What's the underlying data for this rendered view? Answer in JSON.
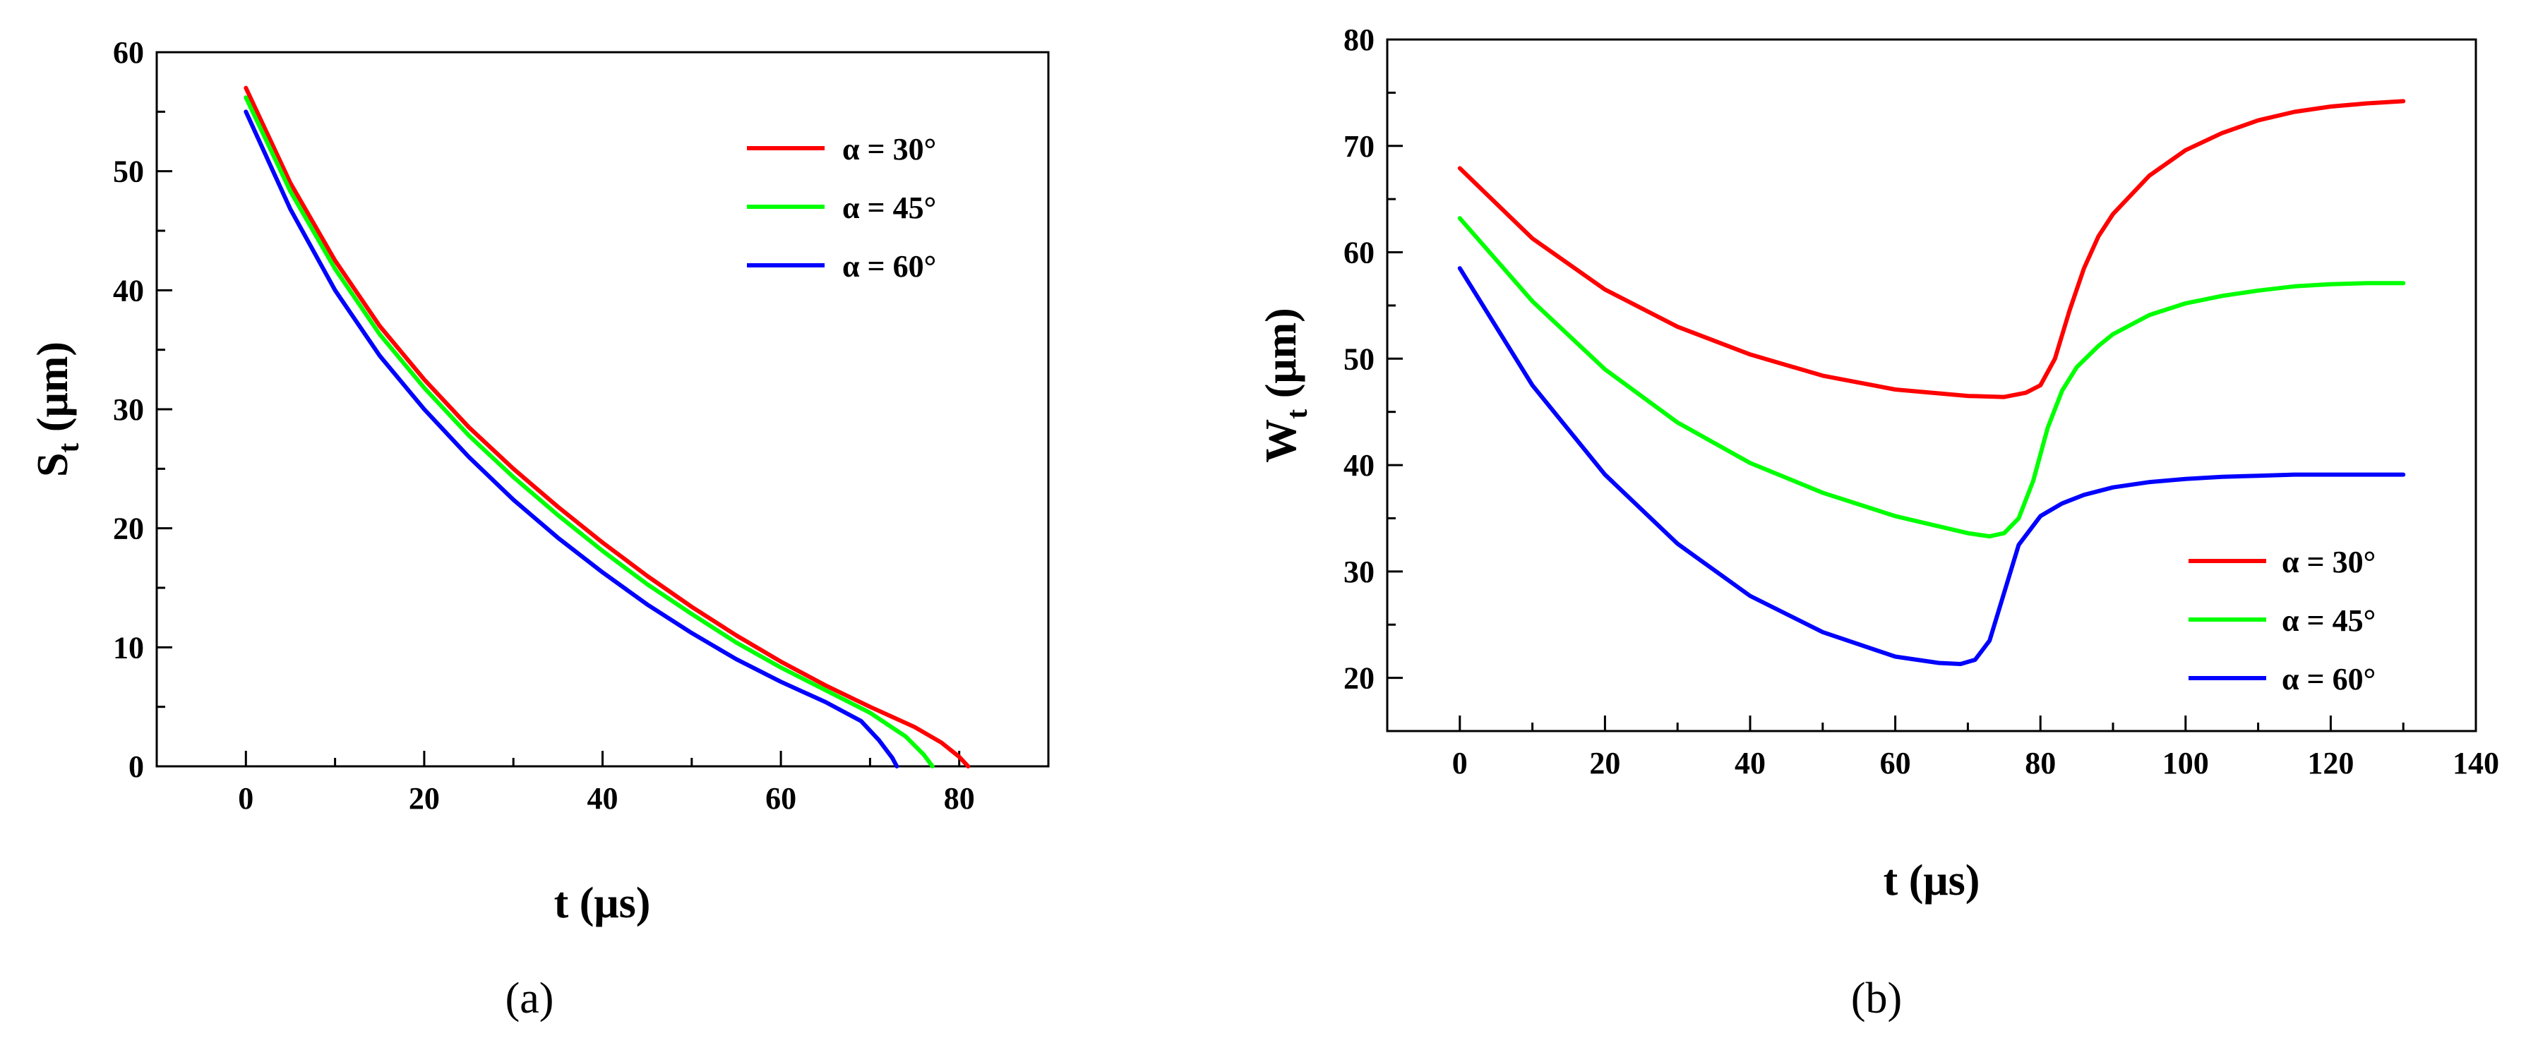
{
  "chart_data": [
    {
      "type": "line",
      "panel_label": "(a)",
      "xlabel": "t (μs)",
      "ylabel": {
        "main": "S",
        "sub": "t",
        "unit": " (μm)"
      },
      "xlim": [
        -10,
        90
      ],
      "ylim": [
        0,
        60
      ],
      "xticks": [
        0,
        20,
        40,
        60,
        80
      ],
      "yticks": [
        0,
        10,
        20,
        30,
        40,
        50,
        60
      ],
      "legend_position": "top-right",
      "series": [
        {
          "name": "α = 30°",
          "color": "#ff0000",
          "x": [
            0,
            5,
            10,
            15,
            20,
            25,
            30,
            35,
            40,
            45,
            50,
            55,
            60,
            65,
            70,
            75,
            78,
            80,
            81
          ],
          "y": [
            57,
            49,
            42.5,
            37,
            32.5,
            28.5,
            25,
            21.8,
            18.8,
            16,
            13.4,
            11,
            8.8,
            6.8,
            5,
            3.3,
            2,
            0.8,
            0
          ]
        },
        {
          "name": "α = 45°",
          "color": "#00ff00",
          "x": [
            0,
            5,
            10,
            15,
            20,
            25,
            30,
            35,
            40,
            45,
            50,
            55,
            60,
            65,
            70,
            74,
            76,
            77
          ],
          "y": [
            56.2,
            48.3,
            41.8,
            36.3,
            31.8,
            27.8,
            24.3,
            21.1,
            18.1,
            15.3,
            12.8,
            10.4,
            8.3,
            6.4,
            4.5,
            2.5,
            1,
            0
          ]
        },
        {
          "name": "α = 60°",
          "color": "#0000ff",
          "x": [
            0,
            5,
            10,
            15,
            20,
            25,
            30,
            35,
            40,
            45,
            50,
            55,
            60,
            65,
            69,
            71,
            72.5,
            73
          ],
          "y": [
            55,
            46.8,
            40,
            34.5,
            30,
            26,
            22.4,
            19.2,
            16.3,
            13.6,
            11.2,
            9,
            7.1,
            5.4,
            3.8,
            2.2,
            0.7,
            0
          ]
        }
      ]
    },
    {
      "type": "line",
      "panel_label": "(b)",
      "xlabel": "t (μs)",
      "ylabel": {
        "main": "W",
        "sub": "t",
        "unit": " (μm)"
      },
      "xlim": [
        -10,
        140
      ],
      "ylim": [
        15,
        80
      ],
      "xticks": [
        0,
        20,
        40,
        60,
        80,
        100,
        120,
        140
      ],
      "yticks": [
        20,
        30,
        40,
        50,
        60,
        70,
        80
      ],
      "legend_position": "bottom-right",
      "series": [
        {
          "name": "α = 30°",
          "color": "#ff0000",
          "x": [
            0,
            10,
            20,
            30,
            40,
            50,
            60,
            70,
            75,
            78,
            80,
            82,
            84,
            86,
            88,
            90,
            95,
            100,
            105,
            110,
            115,
            120,
            125,
            130
          ],
          "y": [
            67.9,
            61.3,
            56.5,
            53,
            50.4,
            48.4,
            47.1,
            46.5,
            46.4,
            46.8,
            47.5,
            50,
            54.5,
            58.5,
            61.5,
            63.6,
            67.2,
            69.6,
            71.2,
            72.4,
            73.2,
            73.7,
            74,
            74.2
          ]
        },
        {
          "name": "α = 45°",
          "color": "#00ff00",
          "x": [
            0,
            10,
            20,
            30,
            40,
            50,
            60,
            70,
            73,
            75,
            77,
            79,
            81,
            83,
            85,
            88,
            90,
            95,
            100,
            105,
            110,
            115,
            120,
            125,
            130
          ],
          "y": [
            63.2,
            55.4,
            49,
            44,
            40.2,
            37.4,
            35.2,
            33.6,
            33.3,
            33.6,
            35,
            38.5,
            43.5,
            47,
            49.2,
            51.2,
            52.3,
            54.1,
            55.2,
            55.9,
            56.4,
            56.8,
            57,
            57.1,
            57.1
          ]
        },
        {
          "name": "α = 60°",
          "color": "#0000ff",
          "x": [
            0,
            10,
            20,
            30,
            40,
            50,
            60,
            66,
            69,
            71,
            73,
            75,
            77,
            80,
            83,
            86,
            90,
            95,
            100,
            105,
            110,
            115,
            120,
            125,
            130
          ],
          "y": [
            58.5,
            47.5,
            39.1,
            32.6,
            27.7,
            24.3,
            22,
            21.4,
            21.3,
            21.7,
            23.5,
            28,
            32.5,
            35.2,
            36.4,
            37.2,
            37.9,
            38.4,
            38.7,
            38.9,
            39,
            39.1,
            39.1,
            39.1,
            39.1
          ]
        }
      ]
    }
  ]
}
